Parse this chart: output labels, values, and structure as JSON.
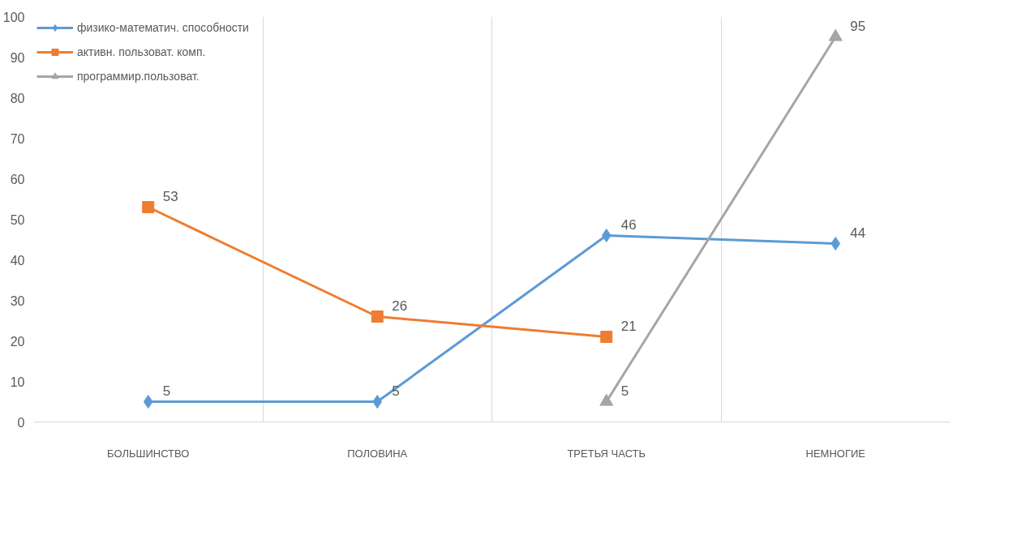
{
  "chart_data": {
    "type": "line",
    "categories": [
      "БОЛЬШИНСТВО",
      "ПОЛОВИНА",
      "ТРЕТЬЯ ЧАСТЬ",
      "НЕМНОГИЕ"
    ],
    "series": [
      {
        "name": "физико-математич. способности",
        "color": "#5b9bd5",
        "marker": "diamond",
        "values": [
          5,
          5,
          46,
          44
        ]
      },
      {
        "name": "активн. пользоват. комп.",
        "color": "#ed7d31",
        "marker": "square",
        "values": [
          53,
          26,
          21,
          null
        ]
      },
      {
        "name": "программир.пользоват.",
        "color": "#a5a5a5",
        "marker": "triangle",
        "values": [
          null,
          null,
          5,
          95
        ]
      }
    ],
    "ylim": [
      0,
      100
    ],
    "yticks": [
      0,
      10,
      20,
      30,
      40,
      50,
      60,
      70,
      80,
      90,
      100
    ],
    "grid": "x",
    "legend": "top left",
    "data_labels": true,
    "line_style": "solid"
  }
}
